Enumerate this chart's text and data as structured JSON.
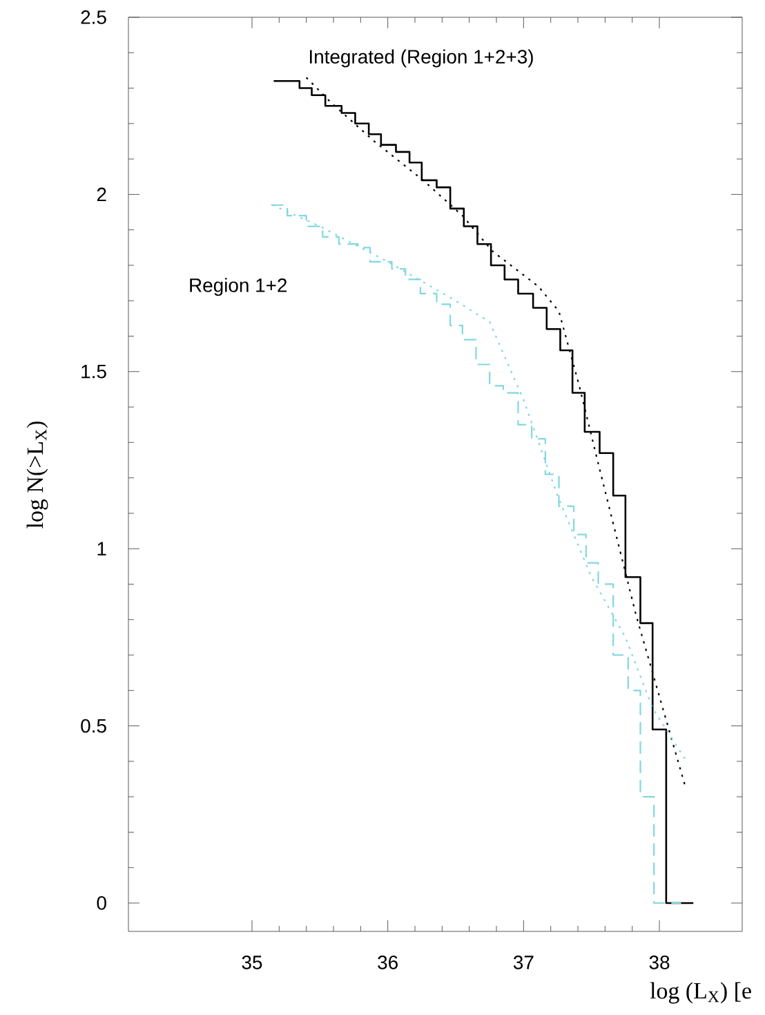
{
  "chart_data": {
    "type": "step",
    "xlabel": "log (L$_{X}$)  [e",
    "ylabel": "log N(>L$_{X}$)",
    "xlim": [
      34.09,
      38.61
    ],
    "ylim": [
      -0.08,
      2.5
    ],
    "xticks": [
      35,
      36,
      37,
      38
    ],
    "yticks": [
      0,
      0.5,
      1,
      1.5,
      2,
      2.5
    ],
    "grid": false,
    "series": [
      {
        "name": "Integrated (Region 1+2+3)",
        "type": "step",
        "line_style": "solid",
        "color": "#000000",
        "x": [
          35.16,
          35.35,
          35.44,
          35.54,
          35.66,
          35.76,
          35.86,
          35.95,
          36.06,
          36.16,
          36.25,
          36.36,
          36.46,
          36.56,
          36.66,
          36.76,
          36.86,
          36.96,
          37.07,
          37.17,
          37.27,
          37.36,
          37.45,
          37.56,
          37.66,
          37.75,
          37.86,
          37.95,
          38.05,
          38.25
        ],
        "values": [
          2.32,
          2.3,
          2.28,
          2.25,
          2.23,
          2.2,
          2.17,
          2.14,
          2.12,
          2.09,
          2.04,
          2.02,
          1.96,
          1.91,
          1.86,
          1.8,
          1.76,
          1.72,
          1.68,
          1.62,
          1.56,
          1.44,
          1.33,
          1.27,
          1.15,
          0.92,
          0.79,
          0.49,
          0,
          0
        ]
      },
      {
        "type": "line",
        "line_style": "dotted",
        "color": "#000000",
        "x": [
          35.4,
          35.58,
          35.9,
          36.26,
          36.55,
          36.77,
          37.11,
          37.26,
          37.41,
          37.55,
          37.83,
          38.19
        ],
        "values": [
          2.33,
          2.26,
          2.15,
          2.04,
          1.94,
          1.84,
          1.74,
          1.67,
          1.46,
          1.24,
          0.81,
          0.33
        ]
      },
      {
        "name": "Region 1+2",
        "type": "step",
        "line_style": "dashed",
        "color": "#80d8e0",
        "x": [
          35.14,
          35.26,
          35.4,
          35.52,
          35.64,
          35.78,
          35.87,
          36.03,
          36.13,
          36.24,
          36.36,
          36.46,
          36.55,
          36.65,
          36.75,
          36.85,
          36.96,
          37.06,
          37.16,
          37.26,
          37.37,
          37.46,
          37.55,
          37.66,
          37.77,
          37.86,
          37.96,
          38.16
        ],
        "values": [
          1.97,
          1.94,
          1.91,
          1.88,
          1.86,
          1.85,
          1.81,
          1.79,
          1.76,
          1.72,
          1.69,
          1.63,
          1.59,
          1.52,
          1.46,
          1.44,
          1.35,
          1.31,
          1.21,
          1.12,
          1.04,
          0.96,
          0.9,
          0.7,
          0.6,
          0.3,
          0,
          0
        ]
      },
      {
        "type": "line",
        "line_style": "dotted",
        "color": "#80d8e0",
        "x": [
          35.15,
          35.5,
          36.0,
          36.5,
          36.75,
          37.0,
          37.25,
          37.5,
          37.75,
          37.95,
          38.2
        ],
        "values": [
          1.97,
          1.91,
          1.81,
          1.7,
          1.64,
          1.42,
          1.15,
          0.92,
          0.75,
          0.55,
          0.4
        ]
      }
    ]
  }
}
